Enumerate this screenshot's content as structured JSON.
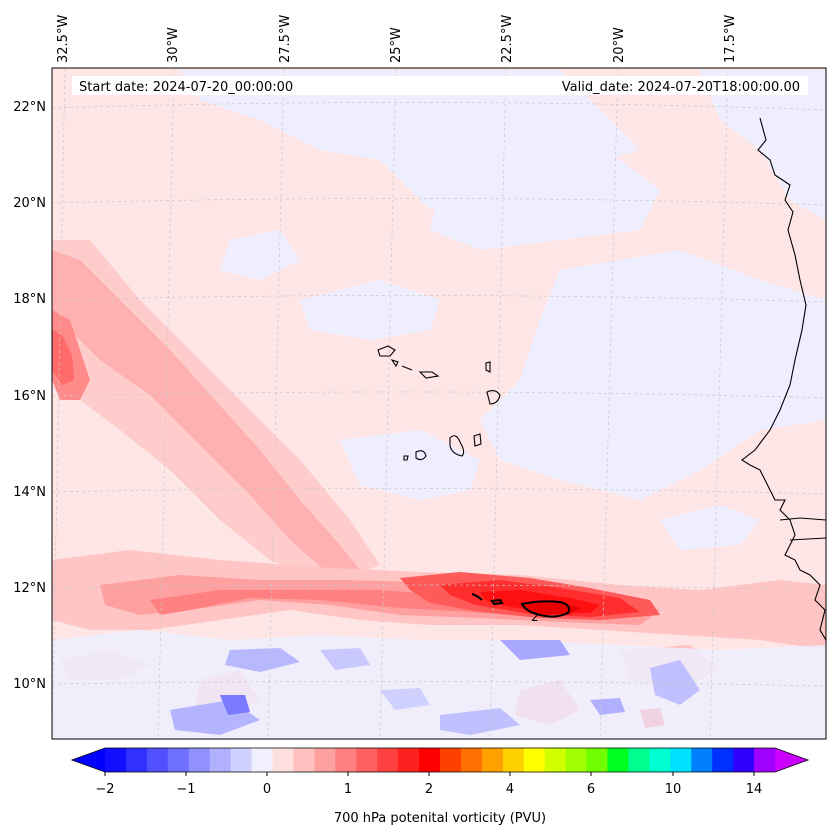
{
  "map": {
    "start_date": "Start date: 2024-07-20_00:00:00",
    "valid_date": "Valid_date: 2024-07-20T18:00:00.00",
    "lon_labels": [
      "32.5°W",
      "30°W",
      "27.5°W",
      "25°W",
      "22.5°W",
      "20°W",
      "17.5°W"
    ],
    "lat_labels": [
      "22°N",
      "20°N",
      "18°N",
      "16°N",
      "14°N",
      "12°N",
      "10°N"
    ],
    "contour_label": "2"
  },
  "colorbar": {
    "label": "700 hPa potenital vorticity (PVU)",
    "tick_labels": [
      "−2",
      "−1",
      "0",
      "1",
      "2",
      "4",
      "6",
      "10",
      "14"
    ],
    "colors": [
      "#1010ff",
      "#3030ff",
      "#5050ff",
      "#7070ff",
      "#9090ff",
      "#b0b0ff",
      "#d0d0ff",
      "#f0f0ff",
      "#ffe0e0",
      "#ffc0c0",
      "#ffa0a0",
      "#ff8080",
      "#ff6060",
      "#ff4040",
      "#ff2020",
      "#ff0000",
      "#ff4000",
      "#ff7000",
      "#ffa000",
      "#ffd000",
      "#ffff00",
      "#d0ff00",
      "#a0ff00",
      "#70ff00",
      "#00ff20",
      "#00ff90",
      "#00ffd0",
      "#00e0ff",
      "#0080ff",
      "#0030ff",
      "#3000ff",
      "#a000ff"
    ],
    "under_color": "#0000ff",
    "over_color": "#cc00ff"
  }
}
